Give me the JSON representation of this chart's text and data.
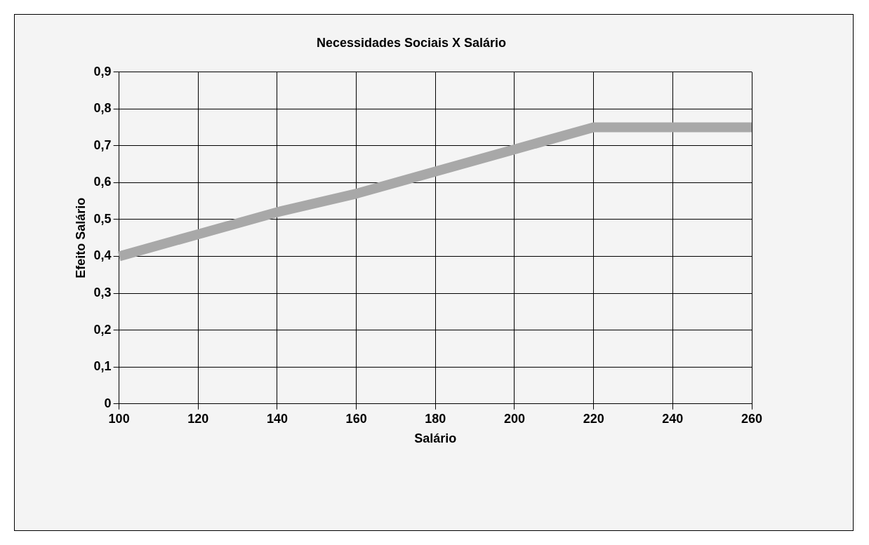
{
  "chart_data": {
    "type": "line",
    "title": "Necessidades Sociais X Salário",
    "xlabel": "Salário",
    "ylabel": "Efeito Salário",
    "categories": [
      "100",
      "120",
      "140",
      "160",
      "180",
      "200",
      "220",
      "240",
      "260"
    ],
    "series": [
      {
        "color": "#a8a8a8",
        "values": [
          0.4,
          0.46,
          0.52,
          0.57,
          0.63,
          0.69,
          0.75,
          0.75,
          0.75
        ]
      }
    ],
    "ylim": [
      0,
      0.9
    ],
    "yticks": [
      0,
      {
        "value": 0.1,
        "label": "0,1"
      },
      {
        "value": 0.2,
        "label": "0,2"
      },
      {
        "value": 0.3,
        "label": "0,3"
      },
      {
        "value": 0.4,
        "label": "0,4"
      },
      {
        "value": 0.5,
        "label": "0,5"
      },
      {
        "value": 0.6,
        "label": "0,6"
      },
      {
        "value": 0.7,
        "label": "0,7"
      },
      {
        "value": 0.8,
        "label": "0,8"
      },
      {
        "value": 0.9,
        "label": "0,9"
      }
    ],
    "grid": true,
    "marker": "none",
    "line_style": "solid"
  }
}
